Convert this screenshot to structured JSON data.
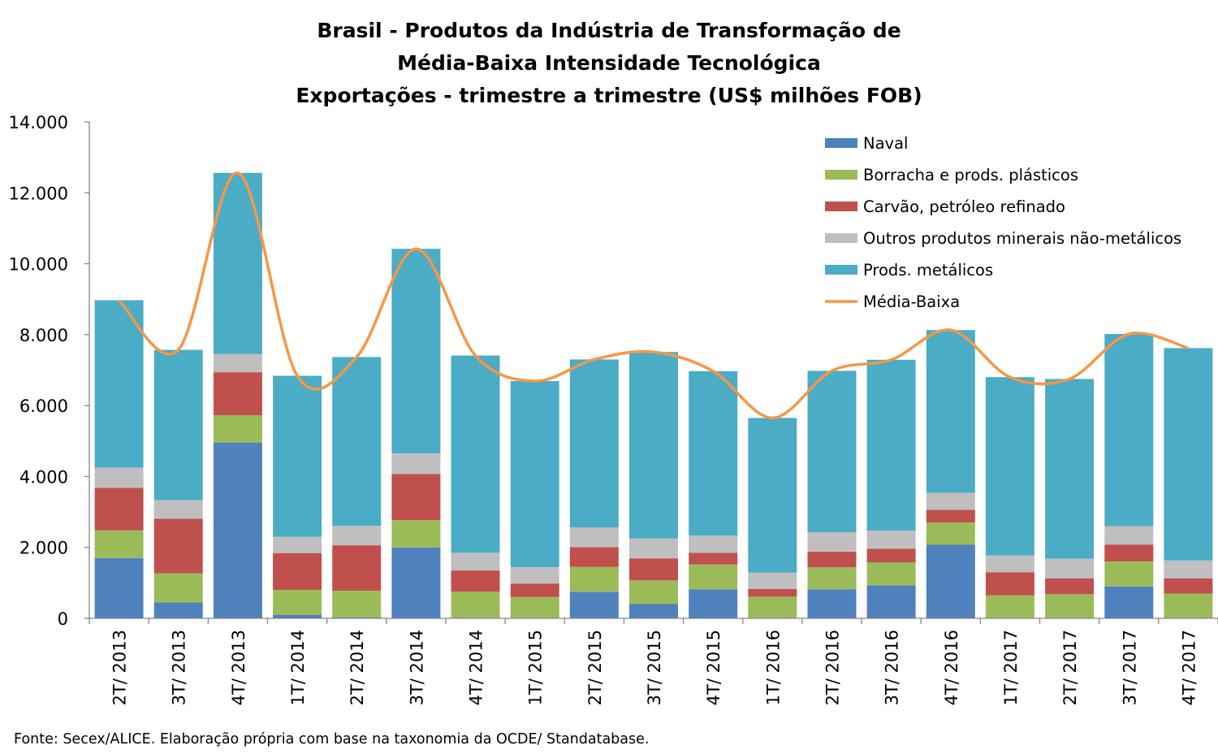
{
  "chart_data": {
    "type": "bar",
    "stacked": true,
    "title": [
      "Brasil - Produtos da Indústria de Transformação de",
      "Média-Baixa Intensidade Tecnológica",
      "Exportações - trimestre a trimestre (US$ milhões FOB)"
    ],
    "source": "Fonte: Secex/ALICE. Elaboração própria com base na taxonomia da OCDE/ Standatabase.",
    "categories": [
      "2T/ 2013",
      "3T/ 2013",
      "4T/ 2013",
      "1T/ 2014",
      "2T/ 2014",
      "3T/ 2014",
      "4T/ 2014",
      "1T/ 2015",
      "2T/ 2015",
      "3T/ 2015",
      "4T/ 2015",
      "1T/ 2016",
      "2T/ 2016",
      "3T/ 2016",
      "4T/ 2016",
      "1T/ 2017",
      "2T/ 2017",
      "3T/ 2017",
      "4T/ 2017"
    ],
    "ylim": [
      0,
      14000
    ],
    "yticks": [
      {
        "value": 0,
        "label": "0"
      },
      {
        "value": 2000,
        "label": "2.000"
      },
      {
        "value": 4000,
        "label": "4.000"
      },
      {
        "value": 6000,
        "label": "6.000"
      },
      {
        "value": 8000,
        "label": "8.000"
      },
      {
        "value": 10000,
        "label": "10.000"
      },
      {
        "value": 12000,
        "label": "12.000"
      },
      {
        "value": 14000,
        "label": "14.000"
      }
    ],
    "grid": false,
    "legend_position": "top-right",
    "series": [
      {
        "name": "Naval",
        "color": "#4f81bd",
        "values": [
          1700,
          450,
          4950,
          100,
          30,
          2000,
          0,
          0,
          750,
          400,
          820,
          0,
          820,
          930,
          2080,
          0,
          0,
          900,
          0
        ]
      },
      {
        "name": "Borracha e prods. plásticos",
        "color": "#9bbb59",
        "values": [
          780,
          820,
          770,
          700,
          750,
          770,
          750,
          600,
          700,
          670,
          700,
          610,
          620,
          650,
          620,
          650,
          680,
          700,
          700
        ]
      },
      {
        "name": "Carvão, petróleo refinado",
        "color": "#c0504d",
        "values": [
          1200,
          1540,
          1220,
          1040,
          1280,
          1300,
          600,
          380,
          560,
          620,
          330,
          220,
          440,
          380,
          360,
          650,
          450,
          480,
          430
        ]
      },
      {
        "name": "Outros produtos minerais não-metálicos",
        "color": "#bfbfbf",
        "values": [
          570,
          520,
          510,
          460,
          550,
          580,
          500,
          460,
          550,
          560,
          480,
          460,
          550,
          510,
          480,
          470,
          550,
          520,
          500
        ]
      },
      {
        "name": "Prods. metálicos",
        "color": "#4bacc6",
        "values": [
          4720,
          4240,
          5110,
          4540,
          4760,
          5770,
          5560,
          5250,
          4740,
          5260,
          4640,
          4360,
          4550,
          4820,
          4590,
          5030,
          5070,
          5420,
          5990
        ]
      }
    ],
    "line_series": {
      "name": "Média-Baixa",
      "color": "#f79646",
      "values": [
        8970,
        7570,
        12560,
        6840,
        7370,
        10420,
        7410,
        6690,
        7300,
        7510,
        6970,
        5650,
        6980,
        7290,
        8130,
        6800,
        6750,
        8020,
        7620
      ]
    }
  }
}
